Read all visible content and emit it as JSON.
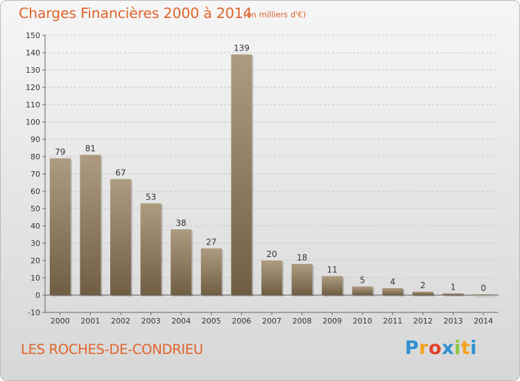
{
  "header": {
    "title": "Charges Financières 2000 à 2014",
    "subtitle": "(en milliers d'€)"
  },
  "footer": {
    "place": "LES ROCHES-DE-CONDRIEU"
  },
  "logo": {
    "letters": [
      "P",
      "r",
      "o",
      "x",
      "i",
      "t",
      "i"
    ],
    "colors": [
      "#2f8fd1",
      "#f4a11d",
      "#e23f2c",
      "#2f8fd1",
      "#8cc63f",
      "#f4a11d",
      "#2f8fd1"
    ]
  },
  "colors": {
    "title": "#e0642a",
    "bar_light": "#ad9c80",
    "bar_dark": "#6f5e43",
    "grid": "#c4c4c4"
  },
  "chart_data": {
    "type": "bar",
    "title": "Charges Financières 2000 à 2014",
    "subtitle": "(en milliers d'€)",
    "categories": [
      "2000",
      "2001",
      "2002",
      "2003",
      "2004",
      "2005",
      "2006",
      "2007",
      "2008",
      "2009",
      "2010",
      "2011",
      "2012",
      "2013",
      "2014"
    ],
    "values": [
      79,
      81,
      67,
      53,
      38,
      27,
      139,
      20,
      18,
      11,
      5,
      4,
      2,
      1,
      0
    ],
    "ylim": [
      -10,
      150
    ],
    "yticks": [
      -10,
      0,
      10,
      20,
      30,
      40,
      50,
      60,
      70,
      80,
      90,
      100,
      110,
      120,
      130,
      140,
      150
    ],
    "grid": true,
    "xlabel": "",
    "ylabel": ""
  }
}
